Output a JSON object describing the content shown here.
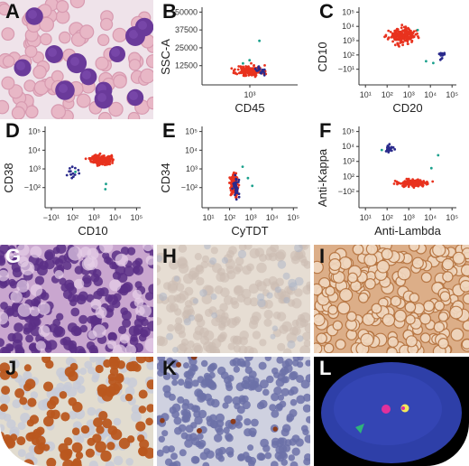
{
  "panels": {
    "A": {
      "letter": "A",
      "kind": "smear"
    },
    "B": {
      "letter": "B",
      "chart_data": {
        "type": "scatter",
        "xlabel": "CD45",
        "ylabel": "SSC-A",
        "xticks": [
          "10³"
        ],
        "yticks": [
          "50000",
          "37500",
          "25000",
          "12500"
        ],
        "xlim": [
          1,
          5
        ],
        "ylim": [
          0,
          50000
        ],
        "series": [
          {
            "color": "#e8321e",
            "cluster": {
              "x_center": 3.0,
              "x_spread": 0.45,
              "y_center": 9000,
              "y_spread": 3000,
              "count": 160
            }
          },
          {
            "color": "#2a2a8c",
            "cluster": {
              "x_center": 3.45,
              "x_spread": 0.25,
              "y_center": 9000,
              "y_spread": 2500,
              "count": 18
            }
          }
        ]
      }
    },
    "C": {
      "letter": "C",
      "chart_data": {
        "type": "scatter",
        "xlabel": "CD20",
        "ylabel": "CD10",
        "xticks": [
          "10¹",
          "10²",
          "10³",
          "10⁴",
          "10⁵"
        ],
        "yticks": [
          "10⁵",
          "10⁴",
          "10³",
          "10²",
          "−10¹"
        ],
        "xlim": [
          0.7,
          5.2
        ],
        "ylim": [
          0.6,
          5.2
        ],
        "series": [
          {
            "color": "#e8321e",
            "cluster": {
              "x_center": 2.7,
              "x_spread": 0.5,
              "y_center": 3.5,
              "y_spread": 0.35,
              "count": 200
            }
          },
          {
            "color": "#2a2a8c",
            "cluster": {
              "x_center": 4.5,
              "x_spread": 0.2,
              "y_center": 2.4,
              "y_spread": 0.25,
              "count": 16
            }
          }
        ]
      }
    },
    "D": {
      "letter": "D",
      "chart_data": {
        "type": "scatter",
        "xlabel": "CD10",
        "ylabel": "CD38",
        "xticks": [
          "−10¹",
          "10²",
          "10³",
          "10⁴",
          "10⁵"
        ],
        "yticks": [
          "10⁵",
          "10⁴",
          "10³",
          "−10²"
        ],
        "xlim": [
          0.6,
          5.2
        ],
        "ylim": [
          1.3,
          5.2
        ],
        "series": [
          {
            "color": "#e8321e",
            "cluster": {
              "x_center": 3.3,
              "x_spread": 0.4,
              "y_center": 3.6,
              "y_spread": 0.2,
              "count": 200
            }
          },
          {
            "color": "#2a2a8c",
            "cluster": {
              "x_center": 1.9,
              "x_spread": 0.3,
              "y_center": 3.0,
              "y_spread": 0.25,
              "count": 14
            }
          }
        ]
      }
    },
    "E": {
      "letter": "E",
      "chart_data": {
        "type": "scatter",
        "xlabel": "CyTDT",
        "ylabel": "CD34",
        "xticks": [
          "10¹",
          "10²",
          "10³",
          "10⁴",
          "10⁵"
        ],
        "yticks": [
          "10⁵",
          "10⁴",
          "10³",
          "−10²"
        ],
        "xlim": [
          0.7,
          5.2
        ],
        "ylim": [
          1.3,
          5.2
        ],
        "series": [
          {
            "color": "#e8321e",
            "cluster": {
              "x_center": 2.2,
              "x_spread": 0.15,
              "y_center": 2.4,
              "y_spread": 0.4,
              "count": 160
            }
          },
          {
            "color": "#2a2a8c",
            "cluster": {
              "x_center": 2.3,
              "x_spread": 0.12,
              "y_center": 2.3,
              "y_spread": 0.35,
              "count": 40
            }
          }
        ]
      }
    },
    "F": {
      "letter": "F",
      "chart_data": {
        "type": "scatter",
        "xlabel": "Anti-Lambda",
        "ylabel": "Anti-Kappa",
        "xticks": [
          "10¹",
          "10²",
          "10³",
          "10⁴",
          "10⁵"
        ],
        "yticks": [
          "10⁵",
          "10⁴",
          "10³",
          "10²",
          "−10²"
        ],
        "xlim": [
          0.7,
          5.2
        ],
        "ylim": [
          0.6,
          5.2
        ],
        "series": [
          {
            "color": "#e8321e",
            "cluster": {
              "x_center": 3.2,
              "x_spread": 0.55,
              "y_center": 2.0,
              "y_spread": 0.15,
              "count": 210
            }
          },
          {
            "color": "#2a2a8c",
            "cluster": {
              "x_center": 2.1,
              "x_spread": 0.2,
              "y_center": 3.9,
              "y_spread": 0.2,
              "count": 20
            }
          }
        ]
      }
    },
    "G": {
      "letter": "G",
      "kind": "he_stain"
    },
    "H": {
      "letter": "H",
      "kind": "ihc_negative"
    },
    "I": {
      "letter": "I",
      "kind": "ihc_membrane"
    },
    "J": {
      "letter": "J",
      "kind": "ihc_nuclear_dense"
    },
    "K": {
      "letter": "K",
      "kind": "ihc_nuclear_sparse"
    },
    "L": {
      "letter": "L",
      "kind": "fish"
    }
  },
  "colors": {
    "event_red": "#e8321e",
    "event_blue": "#2a2a8c",
    "event_teal": "#1aa08c",
    "axis": "#333333"
  }
}
